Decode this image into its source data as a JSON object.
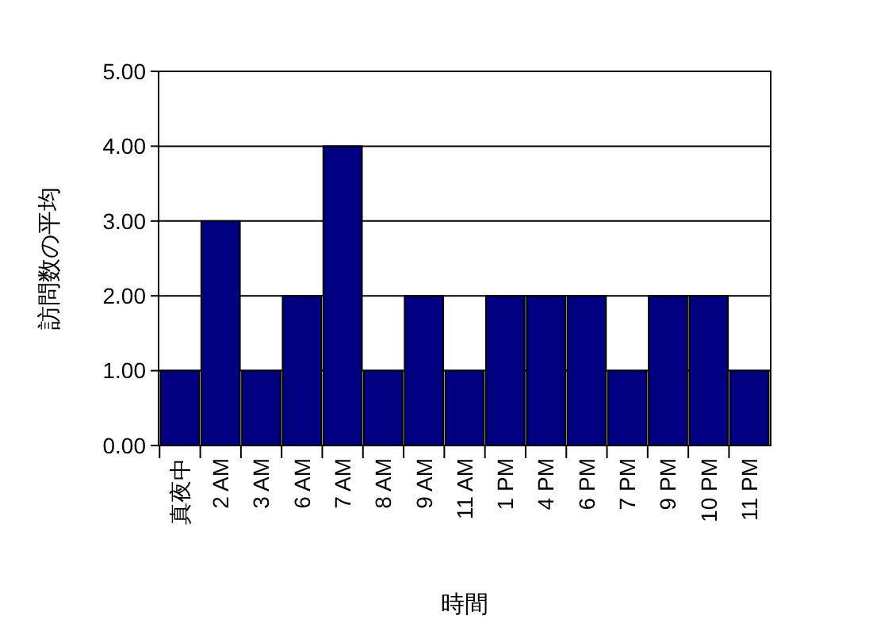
{
  "chart_data": {
    "type": "bar",
    "xlabel": "時間",
    "ylabel": "訪問数の平均",
    "categories": [
      "真夜中",
      "2 AM",
      "3 AM",
      "6 AM",
      "7 AM",
      "8 AM",
      "9 AM",
      "11 AM",
      "1 PM",
      "4 PM",
      "6 PM",
      "7 PM",
      "9 PM",
      "10 PM",
      "11 PM"
    ],
    "values": [
      1,
      3,
      1,
      2,
      4,
      1,
      2,
      1,
      2,
      2,
      2,
      1,
      2,
      2,
      1
    ],
    "color": "#000080",
    "ylim": [
      0,
      5
    ],
    "yticks": [
      {
        "value": 0,
        "label": "0.00"
      },
      {
        "value": 1,
        "label": "1.00"
      },
      {
        "value": 2,
        "label": "2.00"
      },
      {
        "value": 3,
        "label": "3.00"
      },
      {
        "value": 4,
        "label": "4.00"
      },
      {
        "value": 5,
        "label": "5.00"
      }
    ],
    "grid": "y"
  }
}
